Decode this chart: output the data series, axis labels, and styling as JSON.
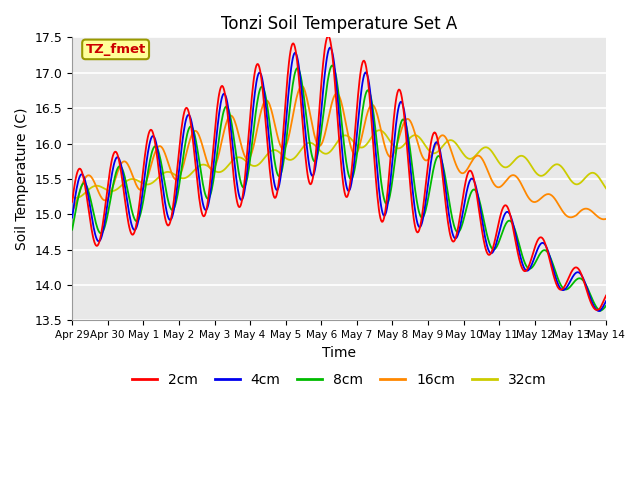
{
  "title": "Tonzi Soil Temperature Set A",
  "xlabel": "Time",
  "ylabel": "Soil Temperature (C)",
  "ylim": [
    13.5,
    17.5
  ],
  "colors": {
    "2cm": "#FF0000",
    "4cm": "#0000EE",
    "8cm": "#00BB00",
    "16cm": "#FF8800",
    "32cm": "#CCCC00"
  },
  "legend_labels": [
    "2cm",
    "4cm",
    "8cm",
    "16cm",
    "32cm"
  ],
  "annotation_text": "TZ_fmet",
  "annotation_color": "#CC0000",
  "annotation_bg": "#FFFF99",
  "annotation_edge": "#999900",
  "bg_color": "#E8E8E8",
  "grid_color": "#FFFFFF",
  "tick_labels": [
    "Apr 29",
    "Apr 30",
    "May 1",
    "May 2",
    "May 3",
    "May 4",
    "May 5",
    "May 6",
    "May 7",
    "May 8",
    "May 9",
    "May 10",
    "May 11",
    "May 12",
    "May 13",
    "May 14"
  ],
  "yticks": [
    13.5,
    14.0,
    14.5,
    15.0,
    15.5,
    16.0,
    16.5,
    17.0,
    17.5
  ],
  "figsize": [
    6.4,
    4.8
  ],
  "dpi": 100
}
